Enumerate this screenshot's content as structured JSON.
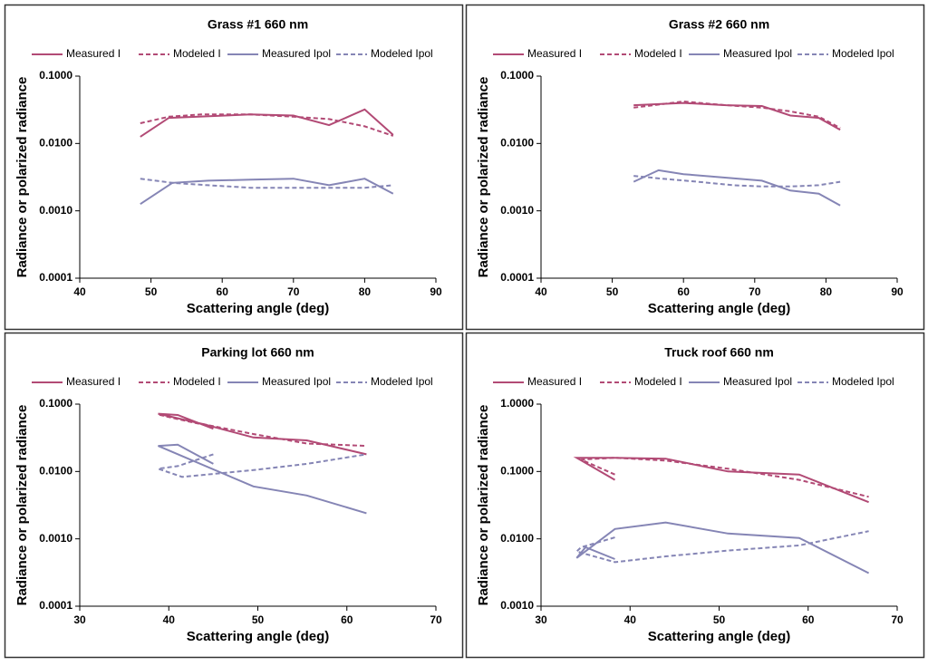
{
  "chart_data": [
    {
      "type": "line",
      "title": "Grass #1 660 nm",
      "xlabel": "Scattering angle (deg)",
      "ylabel": "Radiance or polarized radiance",
      "log_y": true,
      "legend": "top",
      "xlim": [
        40,
        90
      ],
      "xticks": [
        40,
        50,
        60,
        70,
        80,
        90
      ],
      "ylim": [
        0.0001,
        0.1
      ],
      "yticks": [
        {
          "value": 0.0001,
          "label": "0.0001"
        },
        {
          "value": 0.001,
          "label": "0.0010"
        },
        {
          "value": 0.01,
          "label": "0.0100"
        },
        {
          "value": 0.1,
          "label": "0.1000"
        }
      ],
      "series": [
        {
          "name": "Measured I",
          "color": "#b24a75",
          "dashed": false,
          "x": [
            48.5,
            52.5,
            64,
            70,
            75,
            80,
            84
          ],
          "values": [
            0.0126,
            0.024,
            0.027,
            0.026,
            0.0187,
            0.032,
            0.0134
          ]
        },
        {
          "name": "Modeled I",
          "color": "#b24a75",
          "dashed": true,
          "x": [
            48.5,
            52.5,
            57,
            64,
            70,
            75,
            80,
            84
          ],
          "values": [
            0.02,
            0.025,
            0.027,
            0.027,
            0.025,
            0.023,
            0.018,
            0.013
          ]
        },
        {
          "name": "Measured Ipol",
          "color": "#8585b5",
          "dashed": false,
          "x": [
            48.5,
            53,
            58,
            64,
            70,
            75,
            80,
            84
          ],
          "values": [
            0.00126,
            0.0026,
            0.0028,
            0.0029,
            0.003,
            0.0024,
            0.003,
            0.0018
          ]
        },
        {
          "name": "Modeled Ipol",
          "color": "#8585b5",
          "dashed": true,
          "x": [
            48.5,
            53,
            58,
            64,
            70,
            75,
            80,
            84
          ],
          "values": [
            0.003,
            0.0026,
            0.0024,
            0.0022,
            0.0022,
            0.0022,
            0.0022,
            0.0024
          ]
        }
      ]
    },
    {
      "type": "line",
      "title": "Grass #2 660 nm",
      "xlabel": "Scattering angle (deg)",
      "ylabel": "Radiance or polarized radiance",
      "log_y": true,
      "legend": "top",
      "xlim": [
        40,
        90
      ],
      "xticks": [
        40,
        50,
        60,
        70,
        80,
        90
      ],
      "ylim": [
        0.0001,
        0.1
      ],
      "yticks": [
        {
          "value": 0.0001,
          "label": "0.0001"
        },
        {
          "value": 0.001,
          "label": "0.0010"
        },
        {
          "value": 0.01,
          "label": "0.0100"
        },
        {
          "value": 0.1,
          "label": "0.1000"
        }
      ],
      "series": [
        {
          "name": "Measured I",
          "color": "#b24a75",
          "dashed": false,
          "x": [
            53,
            60,
            66,
            71,
            75,
            79,
            82
          ],
          "values": [
            0.037,
            0.04,
            0.037,
            0.036,
            0.026,
            0.024,
            0.016
          ]
        },
        {
          "name": "Modeled I",
          "color": "#b24a75",
          "dashed": true,
          "x": [
            53,
            60,
            66,
            71,
            75,
            79,
            82
          ],
          "values": [
            0.034,
            0.042,
            0.037,
            0.034,
            0.03,
            0.025,
            0.017
          ]
        },
        {
          "name": "Measured Ipol",
          "color": "#8585b5",
          "dashed": false,
          "x": [
            53,
            56.5,
            60,
            66,
            71,
            75,
            79,
            82
          ],
          "values": [
            0.0027,
            0.004,
            0.0035,
            0.0031,
            0.0028,
            0.002,
            0.0018,
            0.0012
          ]
        },
        {
          "name": "Modeled Ipol",
          "color": "#8585b5",
          "dashed": true,
          "x": [
            53,
            57,
            62,
            67,
            71,
            75,
            79,
            82
          ],
          "values": [
            0.0033,
            0.003,
            0.0027,
            0.0024,
            0.0023,
            0.0023,
            0.0024,
            0.0027
          ]
        }
      ]
    },
    {
      "type": "line",
      "title": "Parking lot 660 nm",
      "xlabel": "Scattering angle (deg)",
      "ylabel": "Radiance or polarized radiance",
      "log_y": true,
      "legend": "top",
      "xlim": [
        30,
        70
      ],
      "xticks": [
        30,
        40,
        50,
        60,
        70
      ],
      "ylim": [
        0.0001,
        0.1
      ],
      "yticks": [
        {
          "value": 0.0001,
          "label": "0.0001"
        },
        {
          "value": 0.001,
          "label": "0.0010"
        },
        {
          "value": 0.01,
          "label": "0.0100"
        },
        {
          "value": 0.1,
          "label": "0.1000"
        }
      ],
      "series": [
        {
          "name": "Measured I",
          "color": "#b24a75",
          "dashed": false,
          "x": [
            45,
            41,
            38.8,
            44,
            49.5,
            55.5,
            62.2
          ],
          "values": [
            0.043,
            0.069,
            0.072,
            0.05,
            0.032,
            0.029,
            0.018
          ]
        },
        {
          "name": "Modeled I",
          "color": "#b24a75",
          "dashed": true,
          "x": [
            45,
            41,
            38.8,
            44,
            49.5,
            55.5,
            62.2
          ],
          "values": [
            0.046,
            0.06,
            0.07,
            0.05,
            0.036,
            0.026,
            0.024
          ]
        },
        {
          "name": "Measured Ipol",
          "color": "#8585b5",
          "dashed": false,
          "x": [
            45,
            41,
            38.8,
            49.5,
            55.5,
            62.2
          ],
          "values": [
            0.013,
            0.025,
            0.024,
            0.006,
            0.0044,
            0.0024
          ]
        },
        {
          "name": "Modeled Ipol",
          "color": "#8585b5",
          "dashed": true,
          "x": [
            45,
            41,
            38.8,
            41.5,
            49.5,
            55.5,
            62.2
          ],
          "values": [
            0.018,
            0.012,
            0.011,
            0.0083,
            0.0105,
            0.013,
            0.018
          ]
        }
      ]
    },
    {
      "type": "line",
      "title": "Truck roof 660 nm",
      "xlabel": "Scattering angle (deg)",
      "ylabel": "Radiance or polarized radiance",
      "log_y": true,
      "legend": "top",
      "xlim": [
        30,
        70
      ],
      "xticks": [
        30,
        40,
        50,
        60,
        70
      ],
      "ylim": [
        0.001,
        1
      ],
      "yticks": [
        {
          "value": 0.001,
          "label": "0.0010"
        },
        {
          "value": 0.01,
          "label": "0.0100"
        },
        {
          "value": 0.1,
          "label": "0.1000"
        },
        {
          "value": 1,
          "label": "1.0000"
        }
      ],
      "series": [
        {
          "name": "Measured I",
          "color": "#b24a75",
          "dashed": false,
          "x": [
            38.3,
            34,
            38.3,
            44,
            51,
            59,
            66.8
          ],
          "values": [
            0.075,
            0.16,
            0.16,
            0.155,
            0.1,
            0.09,
            0.035
          ]
        },
        {
          "name": "Modeled I",
          "color": "#b24a75",
          "dashed": true,
          "x": [
            38.3,
            34.5,
            38.3,
            44,
            51,
            59,
            66.8
          ],
          "values": [
            0.09,
            0.15,
            0.16,
            0.145,
            0.11,
            0.075,
            0.042
          ]
        },
        {
          "name": "Measured Ipol",
          "color": "#8585b5",
          "dashed": false,
          "x": [
            38.3,
            35,
            34,
            38.3,
            44,
            51,
            59,
            66.8
          ],
          "values": [
            0.005,
            0.0075,
            0.0052,
            0.014,
            0.0175,
            0.012,
            0.0103,
            0.0031
          ]
        },
        {
          "name": "Modeled Ipol",
          "color": "#8585b5",
          "dashed": true,
          "x": [
            38.3,
            34.5,
            34,
            38.3,
            44,
            51,
            59,
            66.8
          ],
          "values": [
            0.0105,
            0.0075,
            0.0065,
            0.0045,
            0.0055,
            0.0067,
            0.008,
            0.013
          ]
        }
      ]
    }
  ]
}
